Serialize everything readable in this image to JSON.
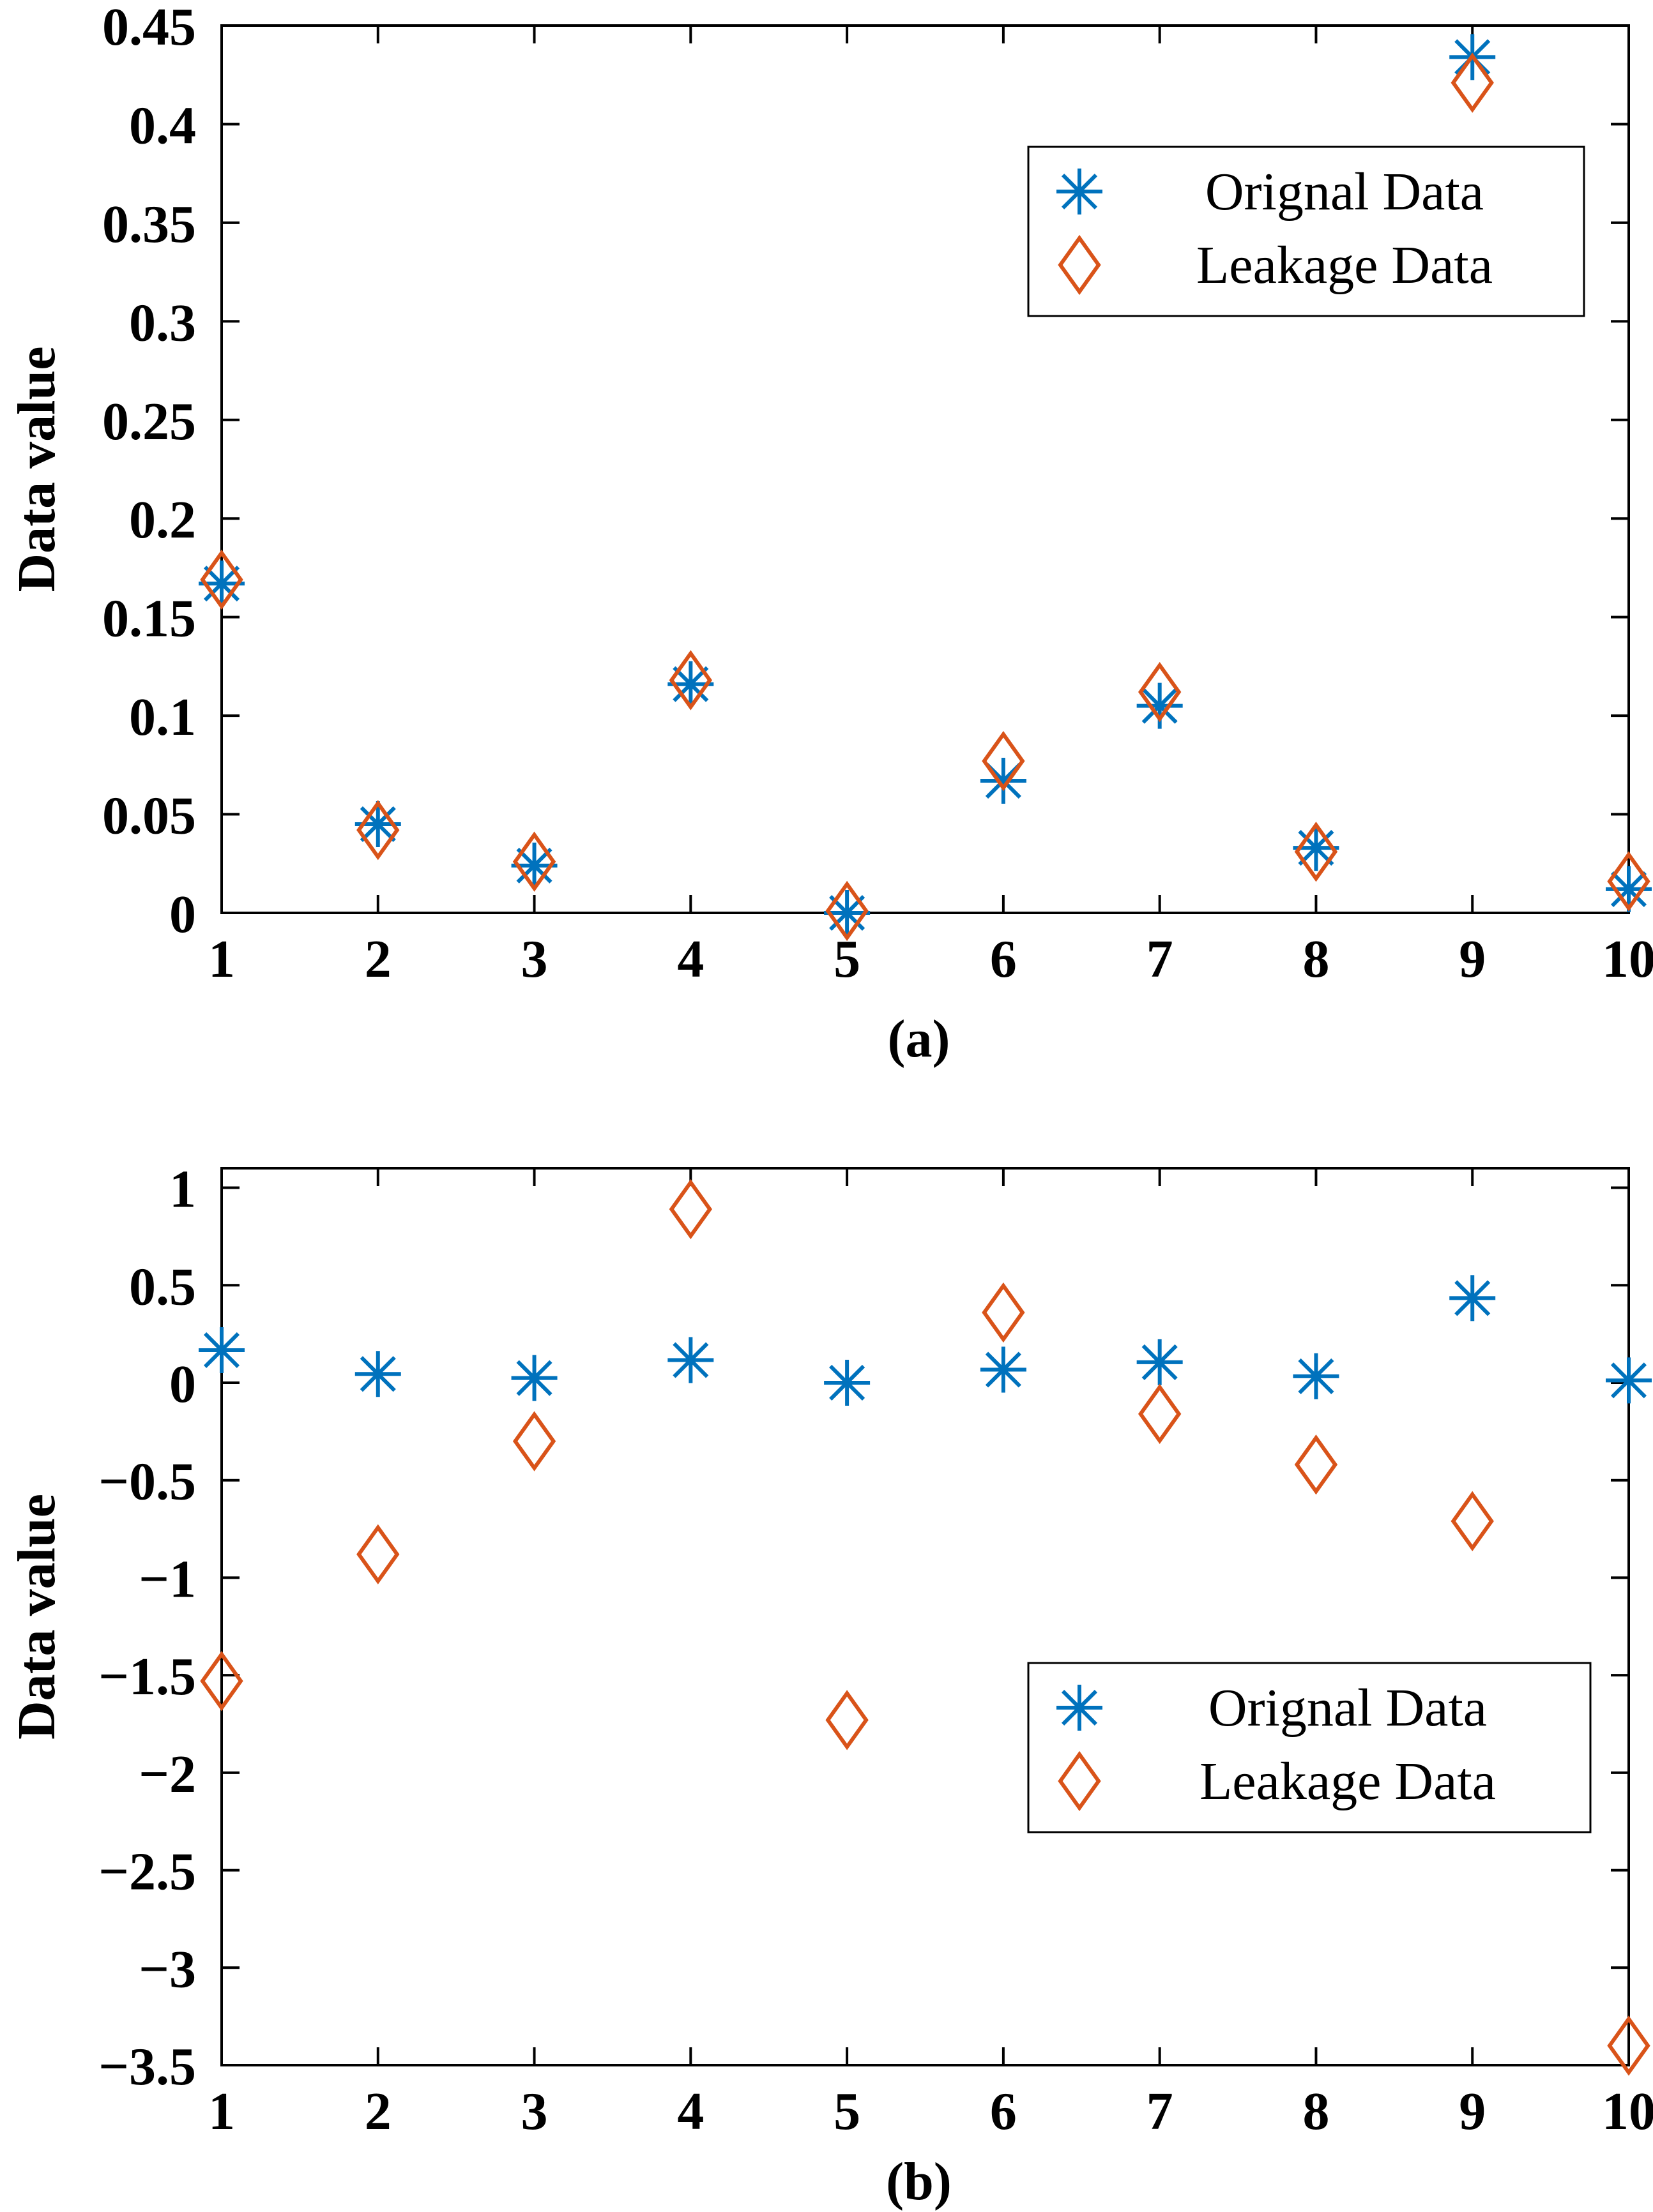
{
  "chart_data": [
    {
      "type": "scatter",
      "caption": "(a)",
      "ylabel": "Data value",
      "xlabel": "",
      "x": [
        1,
        2,
        3,
        4,
        5,
        6,
        7,
        8,
        9,
        10
      ],
      "xlim": [
        1,
        10
      ],
      "ylim": [
        0,
        0.45
      ],
      "x_ticks": [
        "1",
        "2",
        "3",
        "4",
        "5",
        "6",
        "7",
        "8",
        "9",
        "10"
      ],
      "y_ticks": [
        {
          "value": 0,
          "label": "0"
        },
        {
          "value": 0.05,
          "label": "0.05"
        },
        {
          "value": 0.1,
          "label": "0.1"
        },
        {
          "value": 0.15,
          "label": "0.15"
        },
        {
          "value": 0.2,
          "label": "0.2"
        },
        {
          "value": 0.25,
          "label": "0.25"
        },
        {
          "value": 0.3,
          "label": "0.3"
        },
        {
          "value": 0.35,
          "label": "0.35"
        },
        {
          "value": 0.4,
          "label": "0.4"
        },
        {
          "value": 0.45,
          "label": "0.45"
        }
      ],
      "legend_position": "top-right",
      "series": [
        {
          "name": "Orignal Data",
          "marker": "asterisk",
          "color": "#0072BD",
          "values": [
            0.167,
            0.045,
            0.024,
            0.116,
            0.0,
            0.067,
            0.105,
            0.033,
            0.434,
            0.012
          ]
        },
        {
          "name": "Leakage Data",
          "marker": "diamond",
          "color": "#D95319",
          "values": [
            0.169,
            0.042,
            0.026,
            0.118,
            0.001,
            0.077,
            0.112,
            0.031,
            0.421,
            0.016
          ]
        }
      ]
    },
    {
      "type": "scatter",
      "caption": "(b)",
      "ylabel": "Data value",
      "xlabel": "",
      "x": [
        1,
        2,
        3,
        4,
        5,
        6,
        7,
        8,
        9,
        10
      ],
      "xlim": [
        1,
        10
      ],
      "ylim": [
        -3.5,
        1.1
      ],
      "x_ticks": [
        "1",
        "2",
        "3",
        "4",
        "5",
        "6",
        "7",
        "8",
        "9",
        "10"
      ],
      "y_ticks": [
        {
          "value": 1,
          "label": "1"
        },
        {
          "value": 0.5,
          "label": "0.5"
        },
        {
          "value": 0,
          "label": "0"
        },
        {
          "value": -0.5,
          "label": "−0.5"
        },
        {
          "value": -1,
          "label": "−1"
        },
        {
          "value": -1.5,
          "label": "−1.5"
        },
        {
          "value": -2,
          "label": "−2"
        },
        {
          "value": -2.5,
          "label": "−2.5"
        },
        {
          "value": -3,
          "label": "−3"
        },
        {
          "value": -3.5,
          "label": "−3.5"
        }
      ],
      "legend_position": "lower-right",
      "series": [
        {
          "name": "Orignal Data",
          "marker": "asterisk",
          "color": "#0072BD",
          "values": [
            0.167,
            0.045,
            0.024,
            0.116,
            0.0,
            0.067,
            0.105,
            0.033,
            0.434,
            0.012
          ]
        },
        {
          "name": "Leakage Data",
          "marker": "diamond",
          "color": "#D95319",
          "values": [
            -1.53,
            -0.88,
            -0.3,
            0.89,
            -1.73,
            0.36,
            -0.16,
            -0.42,
            -0.71,
            -3.4
          ]
        }
      ]
    }
  ]
}
